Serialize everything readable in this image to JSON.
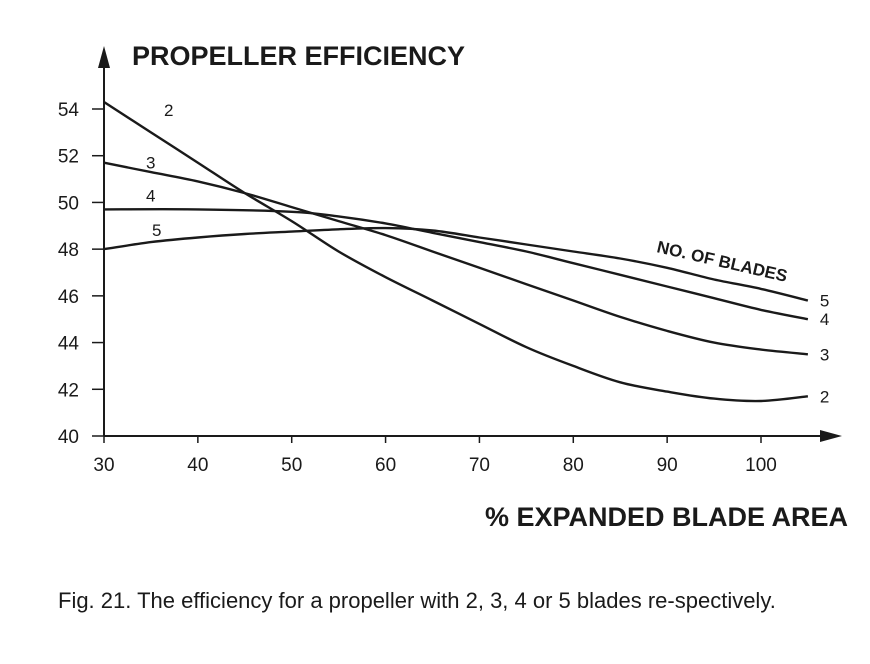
{
  "chart_data": {
    "type": "line",
    "title": "PROPELLER EFFICIENCY",
    "xlabel": "% EXPANDED BLADE AREA",
    "legend_title": "NO. OF BLADES",
    "xlim": [
      30,
      107
    ],
    "ylim": [
      40,
      55
    ],
    "x_ticks": [
      30,
      40,
      50,
      60,
      70,
      80,
      90,
      100
    ],
    "y_ticks": [
      40,
      42,
      44,
      46,
      48,
      50,
      52,
      54
    ],
    "grid": false,
    "series": [
      {
        "name": "2",
        "x": [
          30,
          35,
          40,
          45,
          50,
          55,
          60,
          65,
          70,
          75,
          80,
          85,
          90,
          95,
          100,
          105
        ],
        "y": [
          54.3,
          53.0,
          51.7,
          50.4,
          49.2,
          47.9,
          46.8,
          45.8,
          44.8,
          43.8,
          43.0,
          42.3,
          41.9,
          41.6,
          41.5,
          41.7
        ]
      },
      {
        "name": "3",
        "x": [
          30,
          35,
          40,
          45,
          50,
          55,
          60,
          65,
          70,
          75,
          80,
          85,
          90,
          95,
          100,
          105
        ],
        "y": [
          51.7,
          51.3,
          50.9,
          50.4,
          49.8,
          49.2,
          48.6,
          47.9,
          47.2,
          46.5,
          45.8,
          45.1,
          44.5,
          44.0,
          43.7,
          43.5
        ]
      },
      {
        "name": "4",
        "x": [
          30,
          40,
          50,
          55,
          60,
          65,
          70,
          75,
          80,
          85,
          90,
          95,
          100,
          105
        ],
        "y": [
          49.7,
          49.7,
          49.6,
          49.4,
          49.1,
          48.7,
          48.3,
          47.9,
          47.4,
          46.9,
          46.4,
          45.9,
          45.4,
          45.0
        ]
      },
      {
        "name": "5",
        "x": [
          30,
          35,
          40,
          45,
          50,
          55,
          60,
          65,
          70,
          75,
          80,
          85,
          90,
          95,
          100,
          105
        ],
        "y": [
          48.0,
          48.3,
          48.5,
          48.65,
          48.75,
          48.85,
          48.9,
          48.8,
          48.5,
          48.2,
          47.9,
          47.6,
          47.2,
          46.7,
          46.3,
          45.8
        ]
      }
    ],
    "series_colors": [
      "#1a1a1a",
      "#1a1a1a",
      "#1a1a1a",
      "#1a1a1a"
    ]
  },
  "caption": "Fig. 21. The efficiency for a propeller with 2, 3, 4 or 5 blades re-spectively."
}
